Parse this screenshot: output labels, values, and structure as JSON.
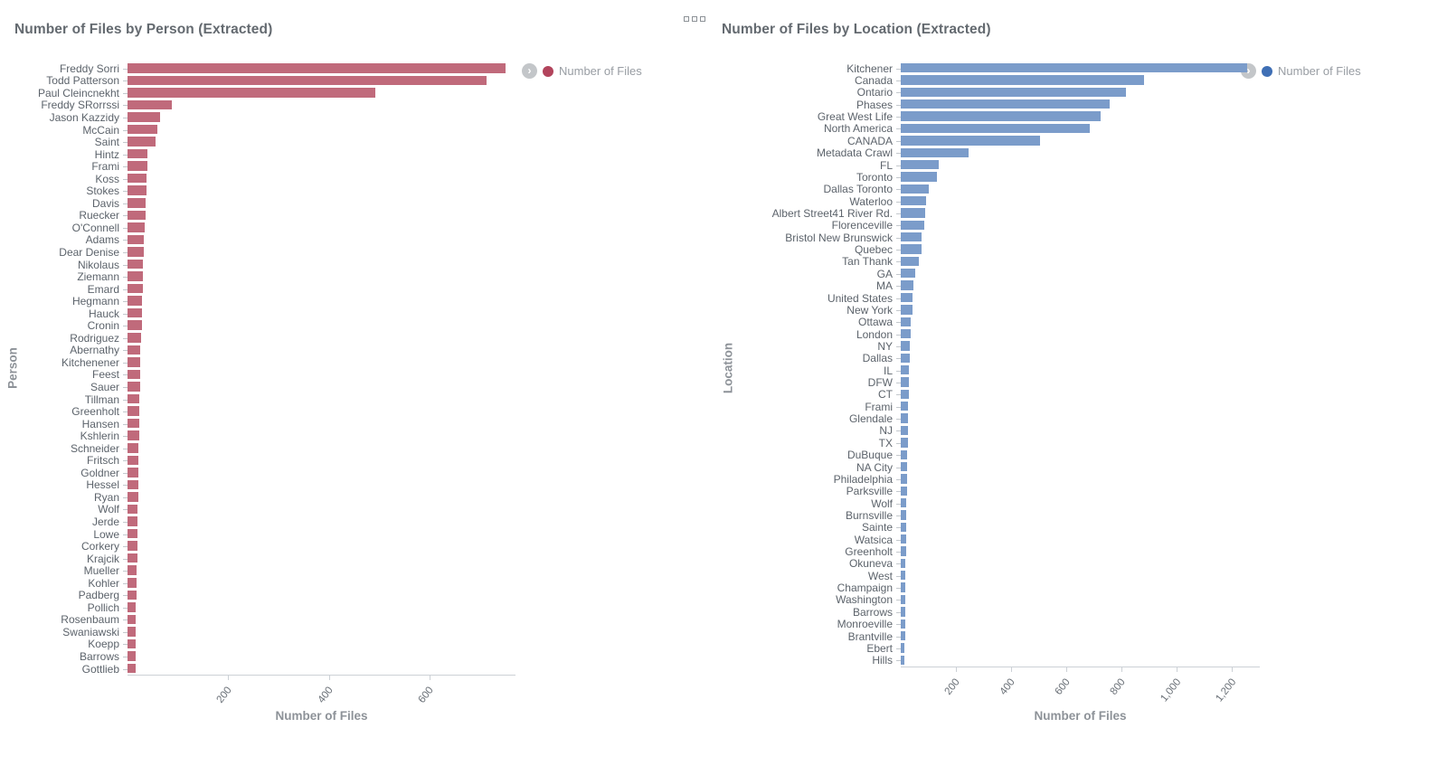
{
  "chart_data": [
    {
      "type": "bar",
      "orientation": "horizontal",
      "title": "Number of Files by Person (Extracted)",
      "legend_label": "Number of Files",
      "legend_position": "right-top",
      "xlabel": "Number of Files",
      "ylabel": "Person",
      "xlim": [
        0,
        770
      ],
      "grid": false,
      "bar_color": "#c06a7b",
      "legend_dot_color": "#b2445c",
      "x_ticks": [
        200,
        400,
        600
      ],
      "x_tick_labels": [
        "200",
        "400",
        "600"
      ],
      "categories": [
        "Freddy Sorri",
        "Todd Patterson",
        "Paul Cleincnekht",
        "Freddy SRorrssi",
        "Jason Kazzidy",
        "McCain",
        "Saint",
        "Hintz",
        "Frami",
        "Koss",
        "Stokes",
        "Davis",
        "Ruecker",
        "O'Connell",
        "Adams",
        "Dear Denise",
        "Nikolaus",
        "Ziemann",
        "Emard",
        "Hegmann",
        "Hauck",
        "Cronin",
        "Rodriguez",
        "Abernathy",
        "Kitchenener",
        "Feest",
        "Sauer",
        "Tillman",
        "Greenholt",
        "Hansen",
        "Kshlerin",
        "Schneider",
        "Fritsch",
        "Goldner",
        "Hessel",
        "Ryan",
        "Wolf",
        "Jerde",
        "Lowe",
        "Corkery",
        "Krajcik",
        "Mueller",
        "Kohler",
        "Padberg",
        "Pollich",
        "Rosenbaum",
        "Swaniawski",
        "Koepp",
        "Barrows",
        "Gottlieb"
      ],
      "values": [
        750,
        712,
        492,
        88,
        65,
        60,
        55,
        40,
        39,
        38,
        37,
        36,
        35,
        34,
        33,
        32,
        31,
        31,
        30,
        29,
        28,
        28,
        27,
        26,
        26,
        25,
        25,
        24,
        24,
        23,
        23,
        22,
        22,
        21,
        21,
        21,
        20,
        20,
        19,
        19,
        19,
        18,
        18,
        18,
        17,
        17,
        17,
        16,
        16,
        16
      ]
    },
    {
      "type": "bar",
      "orientation": "horizontal",
      "title": "Number of Files by Location (Extracted)",
      "legend_label": "Number of Files",
      "legend_position": "right-top",
      "xlabel": "Number of Files",
      "ylabel": "Location",
      "xlim": [
        0,
        1300
      ],
      "grid": false,
      "bar_color": "#7b9cca",
      "legend_dot_color": "#3f6fb5",
      "x_ticks": [
        200,
        400,
        600,
        800,
        1000,
        1200
      ],
      "x_tick_labels": [
        "200",
        "400",
        "600",
        "800",
        "1,000",
        "1,200"
      ],
      "categories": [
        "Kitchener",
        "Canada",
        "Ontario",
        "Phases",
        "Great West Life",
        "North America",
        "CANADA",
        "Metadata Crawl",
        "FL",
        "Toronto",
        "Dallas Toronto",
        "Waterloo",
        "Albert Street41 River Rd.",
        "Florenceville",
        "Bristol New Brunswick",
        "Quebec",
        "Tan Thank",
        "GA",
        "MA",
        "United States",
        "New York",
        "Ottawa",
        "London",
        "NY",
        "Dallas",
        "IL",
        "DFW",
        "CT",
        "Frami",
        "Glendale",
        "NJ",
        "TX",
        "DuBuque",
        "NA City",
        "Philadelphia",
        "Parksville",
        "Wolf",
        "Burnsville",
        "Sainte",
        "Watsica",
        "Greenholt",
        "Okuneva",
        "West",
        "Champaign",
        "Washington",
        "Barrows",
        "Monroeville",
        "Brantville",
        "Ebert",
        "Hills"
      ],
      "values": [
        1255,
        880,
        815,
        755,
        725,
        685,
        505,
        245,
        137,
        132,
        100,
        93,
        88,
        84,
        75,
        74,
        66,
        53,
        46,
        44,
        42,
        37,
        35,
        33,
        32,
        31,
        30,
        28,
        27,
        27,
        26,
        25,
        24,
        24,
        23,
        22,
        21,
        21,
        20,
        19,
        19,
        18,
        18,
        17,
        17,
        16,
        15,
        15,
        14,
        13
      ]
    }
  ],
  "icons": {
    "legend_expand": "›",
    "drag_handle": "grid-squares"
  }
}
